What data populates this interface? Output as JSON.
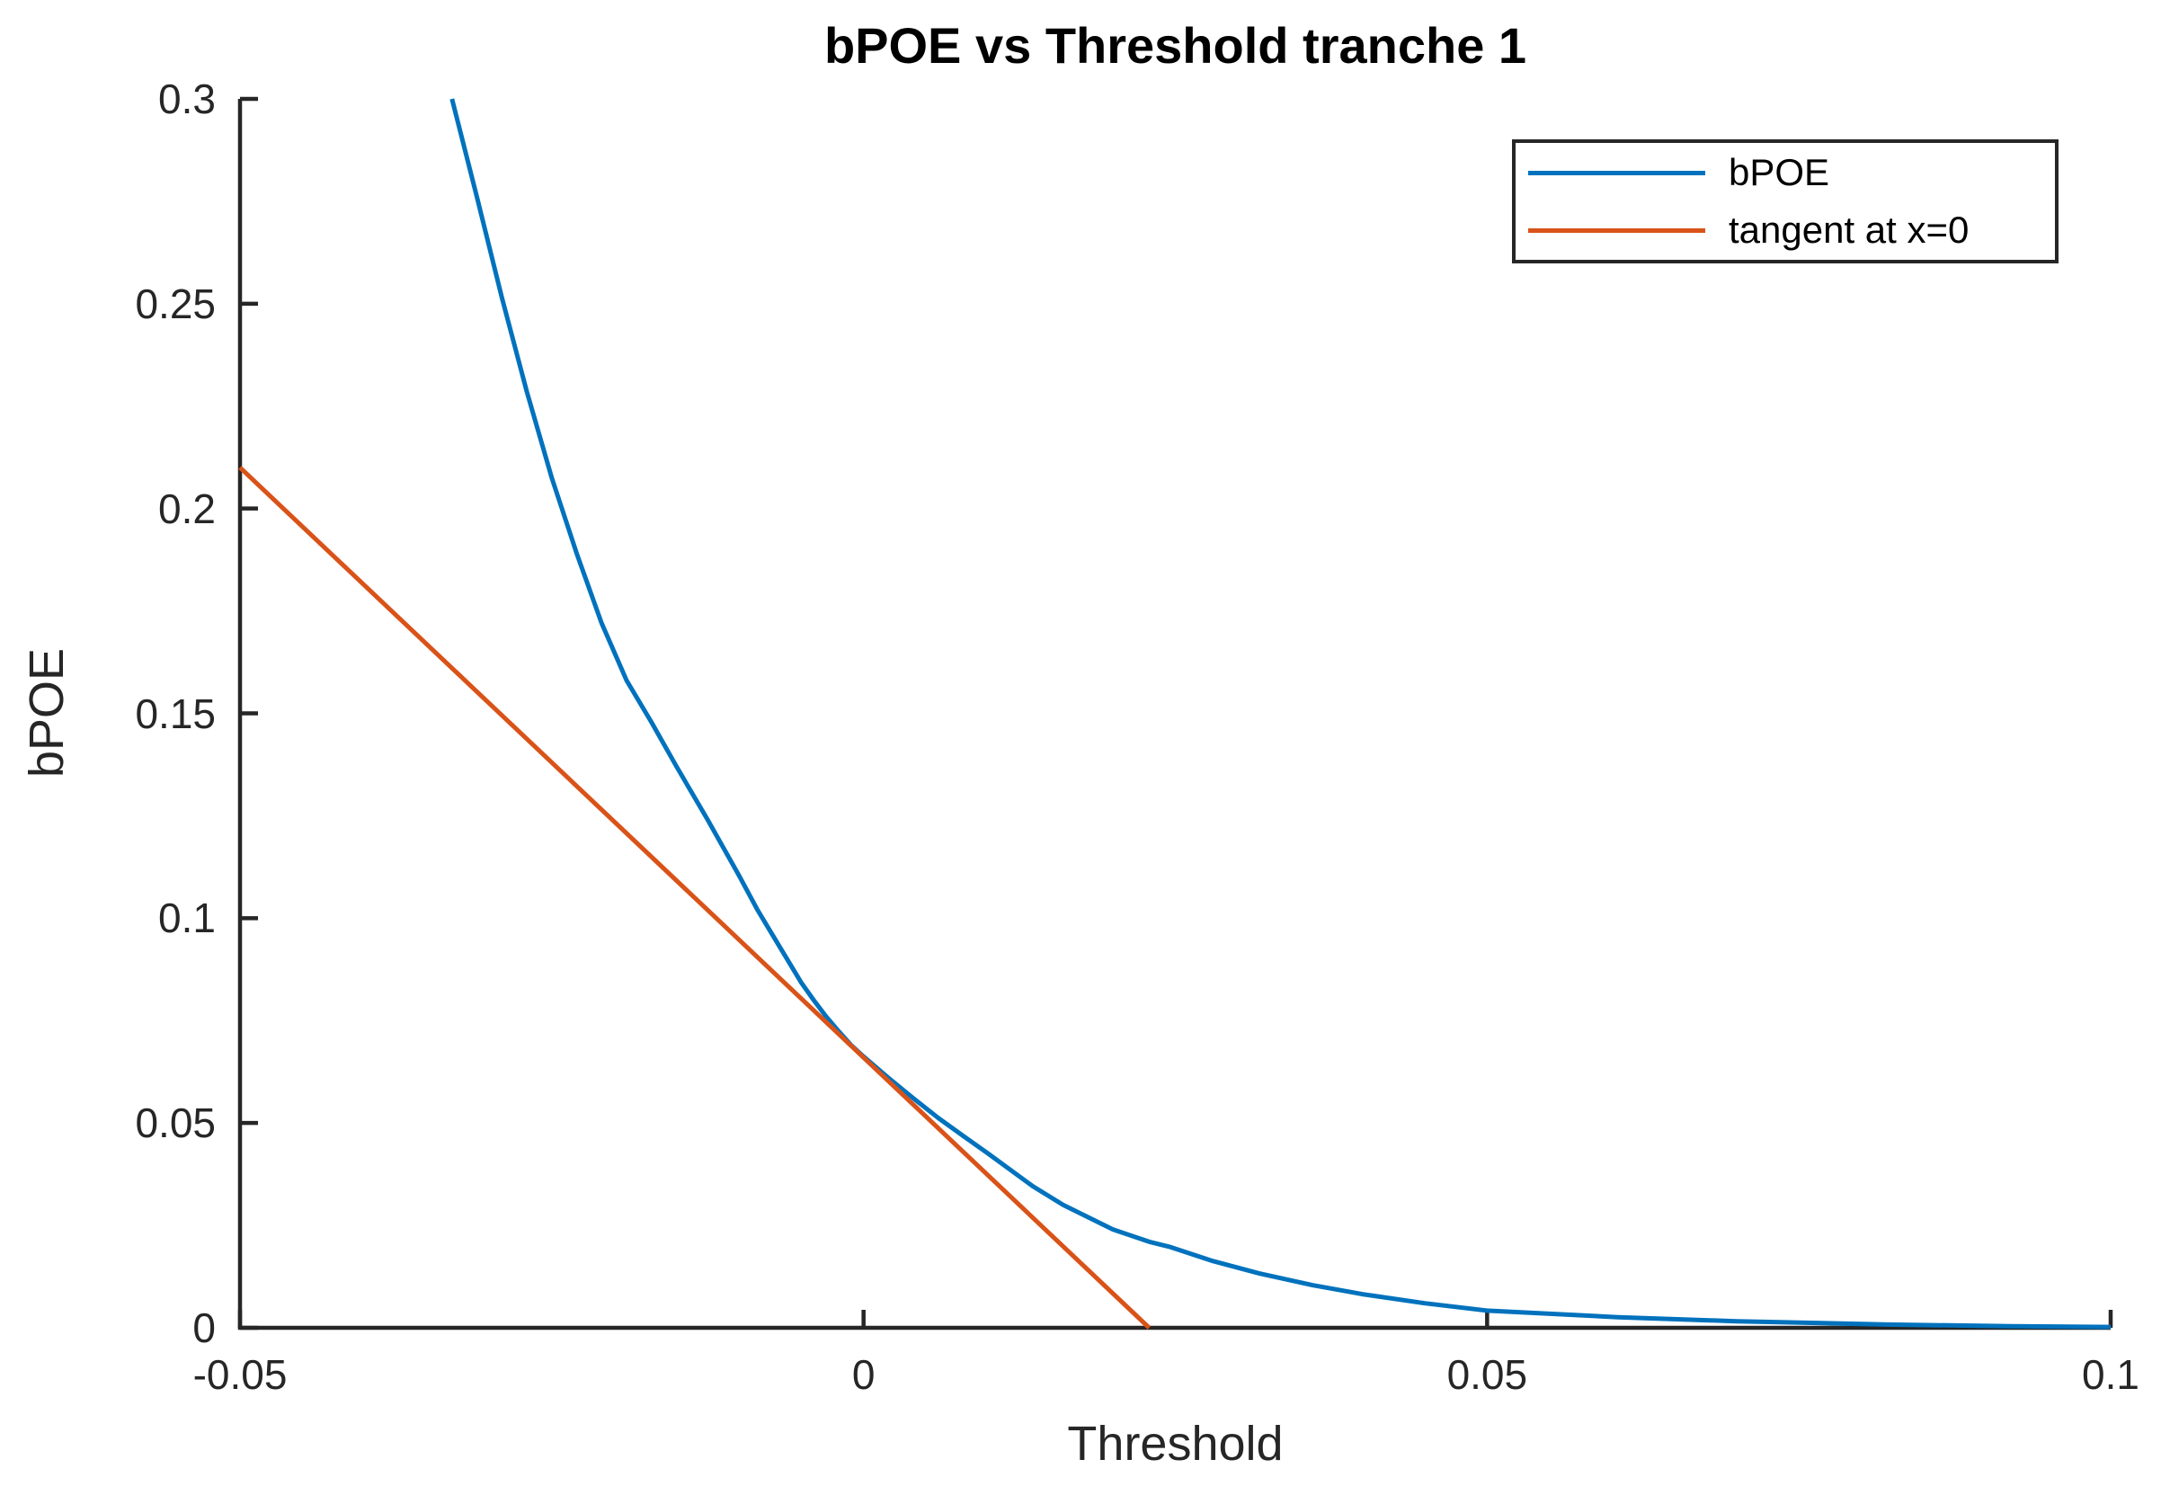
{
  "chart_data": {
    "type": "line",
    "title": "bPOE vs Threshold tranche 1",
    "xlabel": "Threshold",
    "ylabel": "bPOE",
    "xlim": [
      -0.05,
      0.1
    ],
    "ylim": [
      0,
      0.3
    ],
    "grid": false,
    "axis_color": "#262626",
    "background_color": "#ffffff",
    "xticks": [
      {
        "value": -0.05,
        "label": "-0.05"
      },
      {
        "value": 0,
        "label": "0"
      },
      {
        "value": 0.05,
        "label": "0.05"
      },
      {
        "value": 0.1,
        "label": "0.1"
      }
    ],
    "yticks": [
      {
        "value": 0,
        "label": "0"
      },
      {
        "value": 0.05,
        "label": "0.05"
      },
      {
        "value": 0.1,
        "label": "0.1"
      },
      {
        "value": 0.15,
        "label": "0.15"
      },
      {
        "value": 0.2,
        "label": "0.2"
      },
      {
        "value": 0.25,
        "label": "0.25"
      },
      {
        "value": 0.3,
        "label": "0.3"
      }
    ],
    "legend": {
      "position": "northeast",
      "border_color": "#262626",
      "background": "#ffffff"
    },
    "series": [
      {
        "name": "bPOE",
        "color": "#0072BD",
        "points": [
          [
            -0.033,
            0.3
          ],
          [
            -0.031,
            0.276
          ],
          [
            -0.029,
            0.2515
          ],
          [
            -0.027,
            0.2285
          ],
          [
            -0.025,
            0.2075
          ],
          [
            -0.023,
            0.189
          ],
          [
            -0.021,
            0.172
          ],
          [
            -0.019,
            0.158
          ],
          [
            -0.017,
            0.1478
          ],
          [
            -0.015,
            0.137
          ],
          [
            -0.0125,
            0.124
          ],
          [
            -0.01,
            0.1105
          ],
          [
            -0.0085,
            0.102
          ],
          [
            -0.0068,
            0.0934
          ],
          [
            -0.005,
            0.0843
          ],
          [
            -0.004,
            0.08
          ],
          [
            -0.003,
            0.076
          ],
          [
            -0.002,
            0.0724
          ],
          [
            -0.001,
            0.069
          ],
          [
            0.0,
            0.0662
          ],
          [
            0.002,
            0.061
          ],
          [
            0.004,
            0.056
          ],
          [
            0.006,
            0.0512
          ],
          [
            0.008,
            0.0468
          ],
          [
            0.01,
            0.0425
          ],
          [
            0.0136,
            0.0345
          ],
          [
            0.016,
            0.03
          ],
          [
            0.02,
            0.024
          ],
          [
            0.0229,
            0.021
          ],
          [
            0.0245,
            0.0198
          ],
          [
            0.028,
            0.0163
          ],
          [
            0.0317,
            0.0133
          ],
          [
            0.036,
            0.0104
          ],
          [
            0.04,
            0.0082
          ],
          [
            0.045,
            0.006
          ],
          [
            0.05,
            0.0042
          ],
          [
            0.0605,
            0.0026
          ],
          [
            0.07,
            0.0016
          ],
          [
            0.0821,
            0.0008
          ],
          [
            0.092,
            0.0004
          ],
          [
            0.1,
            0.0002
          ]
        ]
      },
      {
        "name": "tangent at x=0",
        "color": "#D95319",
        "points": [
          [
            -0.05,
            0.21
          ],
          [
            0.0229,
            0.0
          ]
        ]
      }
    ]
  }
}
